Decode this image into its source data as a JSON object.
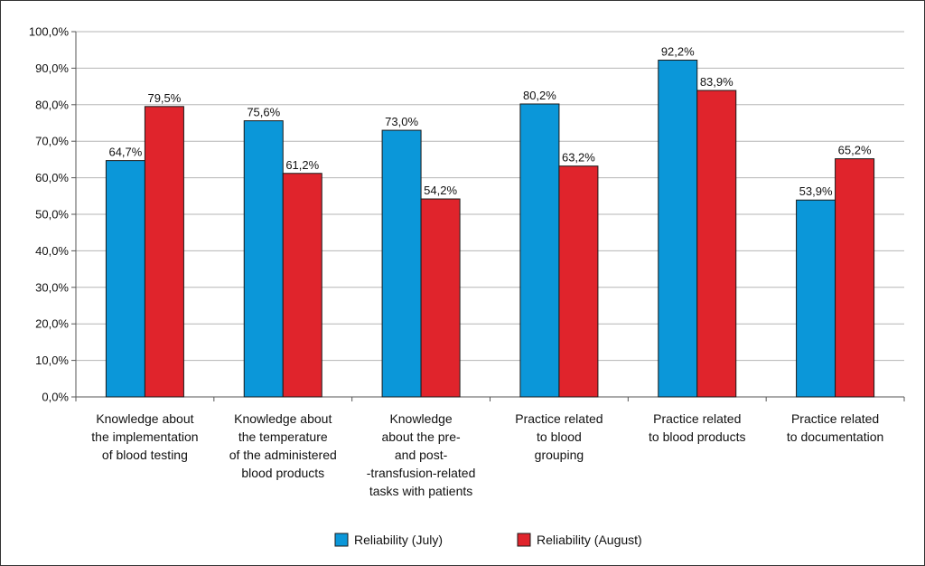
{
  "chart_data": {
    "type": "bar",
    "categories": [
      [
        "Knowledge about",
        "the implementation",
        "of blood testing"
      ],
      [
        "Knowledge about",
        "the temperature",
        "of the administered",
        "blood products"
      ],
      [
        "Knowledge",
        "about the pre-",
        "and post-",
        "-transfusion-related",
        "tasks with patients"
      ],
      [
        "Practice related",
        "to blood",
        "grouping"
      ],
      [
        "Practice related",
        "to blood products"
      ],
      [
        "Practice related",
        "to documentation"
      ]
    ],
    "series": [
      {
        "name": "Reliability (July)",
        "color": "#0b97d9",
        "values": [
          64.7,
          75.6,
          73.0,
          80.2,
          92.2,
          53.9
        ],
        "labels": [
          "64,7%",
          "75,6%",
          "73,0%",
          "80,2%",
          "92,2%",
          "53,9%"
        ]
      },
      {
        "name": "Reliability (August)",
        "color": "#e0242c",
        "values": [
          79.5,
          61.2,
          54.2,
          63.2,
          83.9,
          65.2
        ],
        "labels": [
          "79,5%",
          "61,2%",
          "54,2%",
          "63,2%",
          "83,9%",
          "65,2%"
        ]
      }
    ],
    "yticks": [
      "0,0%",
      "10,0%",
      "20,0%",
      "30,0%",
      "40,0%",
      "50,0%",
      "60,0%",
      "70,0%",
      "80,0%",
      "90,0%",
      "100,0%"
    ],
    "ylim": [
      0,
      100
    ],
    "grid": true,
    "legend": "bottom-center"
  }
}
